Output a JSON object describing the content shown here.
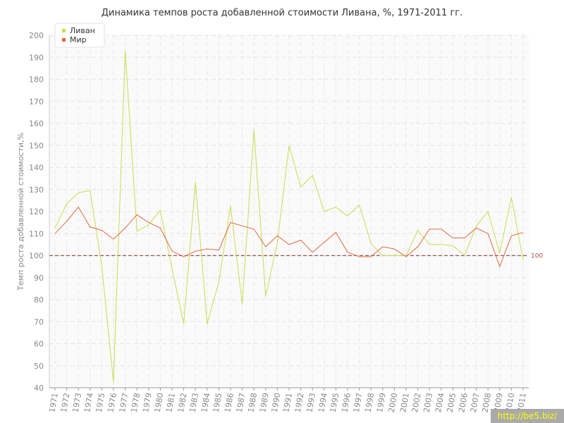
{
  "chart_data": {
    "type": "line",
    "title": "Динамика темпов роста добавленной стоимости Ливана, %, 1971-2011 гг.",
    "xlabel": "",
    "ylabel": "Темп роста добавленной стоимости,%",
    "ylim": [
      40,
      200
    ],
    "yticks": [
      40,
      50,
      60,
      70,
      80,
      90,
      100,
      110,
      120,
      130,
      140,
      150,
      160,
      170,
      180,
      190,
      200
    ],
    "grid": true,
    "legend_position": "top-left",
    "categories": [
      "1971",
      "1972",
      "1973",
      "1974",
      "1975",
      "1976",
      "1977",
      "1978",
      "1979",
      "1980",
      "1981",
      "1982",
      "1983",
      "1984",
      "1985",
      "1986",
      "1987",
      "1988",
      "1989",
      "1990",
      "1991",
      "1992",
      "1993",
      "1994",
      "1995",
      "1996",
      "1997",
      "1998",
      "1999",
      "2000",
      "2001",
      "2002",
      "2003",
      "2004",
      "2005",
      "2006",
      "2007",
      "2008",
      "2009",
      "2010",
      "2011"
    ],
    "series": [
      {
        "name": "Ливан",
        "color": "#c8dc50",
        "values": [
          112.5,
          123.5,
          128.5,
          129.5,
          95,
          42.5,
          193,
          111,
          114,
          120.5,
          94,
          69,
          133.5,
          69,
          88,
          122.5,
          78,
          157,
          81.5,
          106,
          150,
          131,
          136.5,
          120,
          122,
          118,
          123,
          105.5,
          100,
          100,
          100,
          111.5,
          105,
          105,
          104.5,
          100,
          113.5,
          120,
          101,
          126.5,
          98
        ]
      },
      {
        "name": "Мир",
        "color": "#e06840",
        "values": [
          110,
          115.5,
          122,
          113,
          111.5,
          107.5,
          112.5,
          118.5,
          115,
          112.5,
          102,
          99.5,
          102,
          103,
          102.5,
          115,
          113.5,
          112,
          104,
          109,
          105,
          107,
          101.5,
          106,
          110.5,
          101.5,
          99.5,
          99.5,
          104,
          103,
          99.5,
          104,
          112,
          112,
          108,
          108,
          112.5,
          110,
          95,
          109,
          110.5
        ]
      }
    ],
    "reference_line": {
      "value": 100,
      "label": "100",
      "color": "#a05050"
    }
  },
  "watermark": "http://be5.biz/"
}
